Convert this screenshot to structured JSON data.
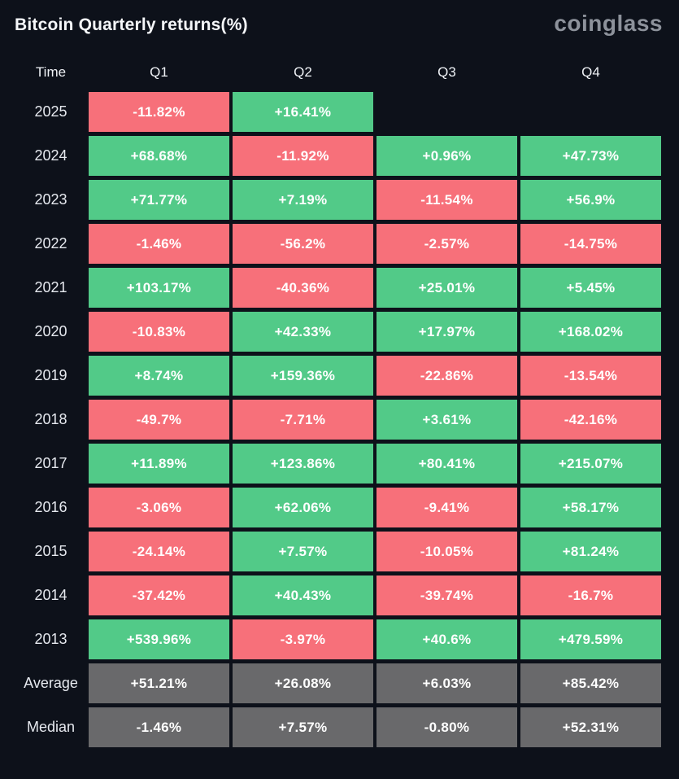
{
  "header": {
    "title": "Bitcoin Quarterly returns(%)",
    "logo": "coinglass"
  },
  "colors": {
    "background": "#0d111a",
    "positive_green": "#52ca88",
    "negative_red": "#f7707a",
    "summary_gray": "#69696b",
    "cell_text": "#ffffff",
    "label_text": "#e6e9ef",
    "logo_text": "#8d929b"
  },
  "table": {
    "columns": [
      "Time",
      "Q1",
      "Q2",
      "Q3",
      "Q4"
    ],
    "rows": [
      {
        "label": "2025",
        "kind": "year",
        "cells": [
          "-11.82%",
          "+16.41%",
          null,
          null
        ]
      },
      {
        "label": "2024",
        "kind": "year",
        "cells": [
          "+68.68%",
          "-11.92%",
          "+0.96%",
          "+47.73%"
        ]
      },
      {
        "label": "2023",
        "kind": "year",
        "cells": [
          "+71.77%",
          "+7.19%",
          "-11.54%",
          "+56.9%"
        ]
      },
      {
        "label": "2022",
        "kind": "year",
        "cells": [
          "-1.46%",
          "-56.2%",
          "-2.57%",
          "-14.75%"
        ]
      },
      {
        "label": "2021",
        "kind": "year",
        "cells": [
          "+103.17%",
          "-40.36%",
          "+25.01%",
          "+5.45%"
        ]
      },
      {
        "label": "2020",
        "kind": "year",
        "cells": [
          "-10.83%",
          "+42.33%",
          "+17.97%",
          "+168.02%"
        ]
      },
      {
        "label": "2019",
        "kind": "year",
        "cells": [
          "+8.74%",
          "+159.36%",
          "-22.86%",
          "-13.54%"
        ]
      },
      {
        "label": "2018",
        "kind": "year",
        "cells": [
          "-49.7%",
          "-7.71%",
          "+3.61%",
          "-42.16%"
        ]
      },
      {
        "label": "2017",
        "kind": "year",
        "cells": [
          "+11.89%",
          "+123.86%",
          "+80.41%",
          "+215.07%"
        ]
      },
      {
        "label": "2016",
        "kind": "year",
        "cells": [
          "-3.06%",
          "+62.06%",
          "-9.41%",
          "+58.17%"
        ]
      },
      {
        "label": "2015",
        "kind": "year",
        "cells": [
          "-24.14%",
          "+7.57%",
          "-10.05%",
          "+81.24%"
        ]
      },
      {
        "label": "2014",
        "kind": "year",
        "cells": [
          "-37.42%",
          "+40.43%",
          "-39.74%",
          "-16.7%"
        ]
      },
      {
        "label": "2013",
        "kind": "year",
        "cells": [
          "+539.96%",
          "-3.97%",
          "+40.6%",
          "+479.59%"
        ]
      },
      {
        "label": "Average",
        "kind": "summary",
        "cells": [
          "+51.21%",
          "+26.08%",
          "+6.03%",
          "+85.42%"
        ]
      },
      {
        "label": "Median",
        "kind": "summary",
        "cells": [
          "-1.46%",
          "+7.57%",
          "-0.80%",
          "+52.31%"
        ]
      }
    ]
  },
  "chart_data": {
    "type": "heatmap",
    "title": "Bitcoin Quarterly returns(%)",
    "columns": [
      "Q1",
      "Q2",
      "Q3",
      "Q4"
    ],
    "row_labels": [
      "2025",
      "2024",
      "2023",
      "2022",
      "2021",
      "2020",
      "2019",
      "2018",
      "2017",
      "2016",
      "2015",
      "2014",
      "2013",
      "Average",
      "Median"
    ],
    "values_pct": [
      [
        -11.82,
        16.41,
        null,
        null
      ],
      [
        68.68,
        -11.92,
        0.96,
        47.73
      ],
      [
        71.77,
        7.19,
        -11.54,
        56.9
      ],
      [
        -1.46,
        -56.2,
        -2.57,
        -14.75
      ],
      [
        103.17,
        -40.36,
        25.01,
        5.45
      ],
      [
        -10.83,
        42.33,
        17.97,
        168.02
      ],
      [
        8.74,
        159.36,
        -22.86,
        -13.54
      ],
      [
        -49.7,
        -7.71,
        3.61,
        -42.16
      ],
      [
        11.89,
        123.86,
        80.41,
        215.07
      ],
      [
        -3.06,
        62.06,
        -9.41,
        58.17
      ],
      [
        -24.14,
        7.57,
        -10.05,
        81.24
      ],
      [
        -37.42,
        40.43,
        -39.74,
        -16.7
      ],
      [
        539.96,
        -3.97,
        40.6,
        479.59
      ],
      [
        51.21,
        26.08,
        6.03,
        85.42
      ],
      [
        -1.46,
        7.57,
        -0.8,
        52.31
      ]
    ],
    "color_rule": "positive=green, negative=red, Average/Median rows=gray, missing=background",
    "legend_position": "none",
    "grid": false
  }
}
